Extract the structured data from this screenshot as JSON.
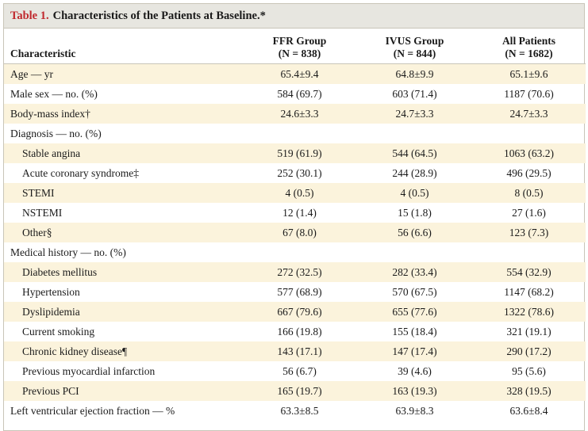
{
  "table": {
    "title_number": "Table 1.",
    "title_text": "Characteristics of the Patients at Baseline.*",
    "headers": {
      "characteristic": "Characteristic",
      "col1_name": "FFR Group",
      "col1_n": "(N = 838)",
      "col2_name": "IVUS Group",
      "col2_n": "(N = 844)",
      "col3_name": "All Patients",
      "col3_n": "(N = 1682)"
    },
    "rows": [
      {
        "label": "Age — yr",
        "ffr": "65.4±9.4",
        "ivus": "64.8±9.9",
        "all": "65.1±9.6"
      },
      {
        "label": "Male sex — no. (%)",
        "ffr": "584 (69.7)",
        "ivus": "603 (71.4)",
        "all": "1187 (70.6)"
      },
      {
        "label": "Body-mass index†",
        "ffr": "24.6±3.3",
        "ivus": "24.7±3.3",
        "all": "24.7±3.3"
      },
      {
        "label": "Diagnosis — no. (%)",
        "ffr": "",
        "ivus": "",
        "all": ""
      },
      {
        "label": "Stable angina",
        "ffr": "519 (61.9)",
        "ivus": "544 (64.5)",
        "all": "1063 (63.2)"
      },
      {
        "label": "Acute coronary syndrome‡",
        "ffr": "252 (30.1)",
        "ivus": "244 (28.9)",
        "all": "496 (29.5)"
      },
      {
        "label": "STEMI",
        "ffr": "4 (0.5)",
        "ivus": "4 (0.5)",
        "all": "8 (0.5)"
      },
      {
        "label": "NSTEMI",
        "ffr": "12 (1.4)",
        "ivus": "15 (1.8)",
        "all": "27 (1.6)"
      },
      {
        "label": "Other§",
        "ffr": "67 (8.0)",
        "ivus": "56 (6.6)",
        "all": "123 (7.3)"
      },
      {
        "label": "Medical history — no. (%)",
        "ffr": "",
        "ivus": "",
        "all": ""
      },
      {
        "label": "Diabetes mellitus",
        "ffr": "272 (32.5)",
        "ivus": "282 (33.4)",
        "all": "554 (32.9)"
      },
      {
        "label": "Hypertension",
        "ffr": "577 (68.9)",
        "ivus": "570 (67.5)",
        "all": "1147 (68.2)"
      },
      {
        "label": "Dyslipidemia",
        "ffr": "667 (79.6)",
        "ivus": "655 (77.6)",
        "all": "1322 (78.6)"
      },
      {
        "label": "Current smoking",
        "ffr": "166 (19.8)",
        "ivus": "155 (18.4)",
        "all": "321 (19.1)"
      },
      {
        "label": "Chronic kidney disease¶",
        "ffr": "143 (17.1)",
        "ivus": "147 (17.4)",
        "all": "290 (17.2)"
      },
      {
        "label": "Previous myocardial infarction",
        "ffr": "56 (6.7)",
        "ivus": "39 (4.6)",
        "all": "95 (5.6)"
      },
      {
        "label": "Previous PCI",
        "ffr": "165 (19.7)",
        "ivus": "163 (19.3)",
        "all": "328 (19.5)"
      },
      {
        "label": "Left ventricular ejection fraction — %",
        "ffr": "63.3±8.5",
        "ivus": "63.9±8.3",
        "all": "63.6±8.4"
      }
    ]
  },
  "colors": {
    "title_number": "#c0282d",
    "title_bar_background": "#e7e6e0",
    "row_shade": "#fbf3dc",
    "border": "#c9c5b8"
  }
}
